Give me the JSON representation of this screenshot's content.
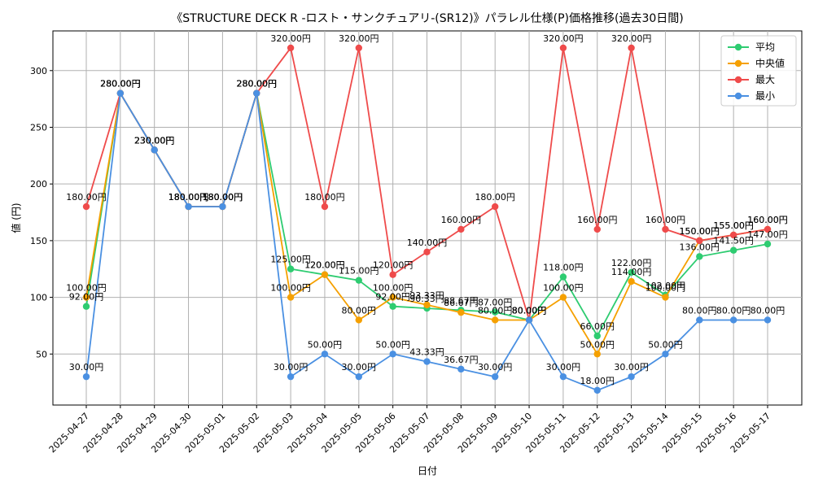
{
  "chart_data": {
    "type": "line",
    "title": "《STRUCTURE DECK R -ロスト・サンクチュアリ-(SR12)》パラレル仕様(P)価格推移(過去30日間)",
    "xlabel": "日付",
    "ylabel": "値 (円)",
    "ylim": [
      5,
      335
    ],
    "yticks": [
      50,
      100,
      150,
      200,
      250,
      300
    ],
    "grid": true,
    "legend_position": "top-right",
    "label_suffix": "円",
    "categories": [
      "2025-04-27",
      "2025-04-28",
      "2025-04-29",
      "2025-04-30",
      "2025-05-01",
      "2025-05-02",
      "2025-05-03",
      "2025-05-04",
      "2025-05-05",
      "2025-05-06",
      "2025-05-07",
      "2025-05-08",
      "2025-05-09",
      "2025-05-10",
      "2025-05-11",
      "2025-05-12",
      "2025-05-13",
      "2025-05-14",
      "2025-05-15",
      "2025-05-16",
      "2025-05-17"
    ],
    "series": [
      {
        "name": "平均",
        "color": "#2ecc71",
        "values": [
          92,
          280,
          230,
          180,
          180,
          280,
          125,
          120,
          115,
          92,
          90.33,
          88.67,
          87,
          80,
          118,
          66,
          122,
          102,
          136,
          141.5,
          147
        ]
      },
      {
        "name": "中央値",
        "color": "#f5a000",
        "values": [
          100,
          280,
          230,
          180,
          180,
          280,
          100,
          120,
          80,
          100,
          93.33,
          86.67,
          80,
          80,
          100,
          50,
          114,
          100,
          150,
          155,
          160
        ]
      },
      {
        "name": "最大",
        "color": "#ef4b4b",
        "values": [
          180,
          280,
          230,
          180,
          180,
          280,
          320,
          180,
          320,
          120,
          140,
          160,
          180,
          80,
          320,
          160,
          320,
          160,
          150,
          155,
          160
        ]
      },
      {
        "name": "最小",
        "color": "#4a90e2",
        "values": [
          30,
          280,
          230,
          180,
          180,
          280,
          30,
          50,
          30,
          50,
          43.33,
          36.67,
          30,
          80,
          30,
          18,
          30,
          50,
          80,
          80,
          80
        ]
      }
    ]
  }
}
